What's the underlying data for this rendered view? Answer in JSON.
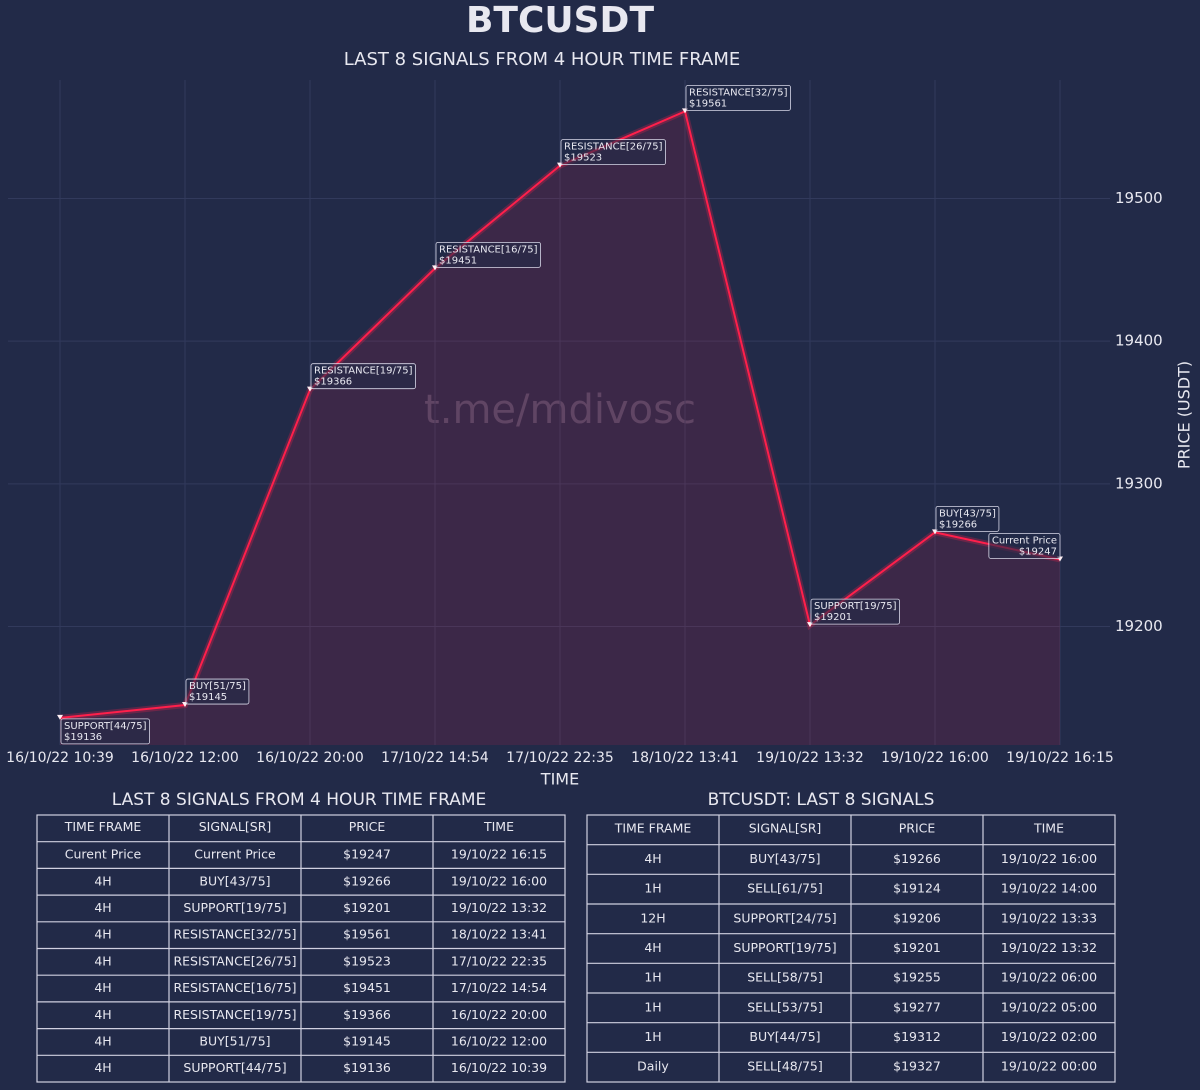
{
  "chart_data": {
    "type": "line",
    "title": "BTCUSDT",
    "subtitle": "LAST 8  SIGNALS FROM 4 HOUR TIME FRAME",
    "x_label": "TIME",
    "y_label": "PRICE (USDT)",
    "watermark": "t.me/mdivosc",
    "categories": [
      "16/10/22 10:39",
      "16/10/22 12:00",
      "16/10/22 20:00",
      "17/10/22 14:54",
      "17/10/22 22:35",
      "18/10/22 13:41",
      "19/10/22 13:32",
      "19/10/22 16:00",
      "19/10/22 16:15"
    ],
    "values": [
      19136,
      19145,
      19366,
      19451,
      19523,
      19561,
      19201,
      19266,
      19247
    ],
    "value_labels": [
      "$19136",
      "$19145",
      "$19366",
      "$19451",
      "$19523",
      "$19561",
      "$19201",
      "$19266",
      "$19247"
    ],
    "annotations": [
      "SUPPORT[44/75]",
      "BUY[51/75]",
      "RESISTANCE[19/75]",
      "RESISTANCE[16/75]",
      "RESISTANCE[26/75]",
      "RESISTANCE[32/75]",
      "SUPPORT[19/75]",
      "BUY[43/75]",
      "Current Price"
    ],
    "color": "#ff1f4b",
    "ylim": [
      19117,
      19583
    ],
    "yticks": [
      19200,
      19300,
      19400,
      19500
    ],
    "grid": true
  },
  "tables": [
    {
      "title": "LAST 8  SIGNALS FROM 4 HOUR TIME FRAME",
      "header": [
        "TIME FRAME",
        "SIGNAL[SR]",
        "PRICE",
        "TIME"
      ],
      "rows": [
        [
          "Curent Price",
          "Current Price",
          "$19247",
          "19/10/22 16:15"
        ],
        [
          "4H",
          "BUY[43/75]",
          "$19266",
          "19/10/22 16:00"
        ],
        [
          "4H",
          "SUPPORT[19/75]",
          "$19201",
          "19/10/22 13:32"
        ],
        [
          "4H",
          "RESISTANCE[32/75]",
          "$19561",
          "18/10/22 13:41"
        ],
        [
          "4H",
          "RESISTANCE[26/75]",
          "$19523",
          "17/10/22 22:35"
        ],
        [
          "4H",
          "RESISTANCE[16/75]",
          "$19451",
          "17/10/22 14:54"
        ],
        [
          "4H",
          "RESISTANCE[19/75]",
          "$19366",
          "16/10/22 20:00"
        ],
        [
          "4H",
          "BUY[51/75]",
          "$19145",
          "16/10/22 12:00"
        ],
        [
          "4H",
          "SUPPORT[44/75]",
          "$19136",
          "16/10/22 10:39"
        ]
      ]
    },
    {
      "title": "BTCUSDT: LAST 8 SIGNALS",
      "header": [
        "TIME FRAME",
        "SIGNAL[SR]",
        "PRICE",
        "TIME"
      ],
      "rows": [
        [
          "4H",
          "BUY[43/75]",
          "$19266",
          "19/10/22 16:00"
        ],
        [
          "1H",
          "SELL[61/75]",
          "$19124",
          "19/10/22 14:00"
        ],
        [
          "12H",
          "SUPPORT[24/75]",
          "$19206",
          "19/10/22 13:33"
        ],
        [
          "4H",
          "SUPPORT[19/75]",
          "$19201",
          "19/10/22 13:32"
        ],
        [
          "1H",
          "SELL[58/75]",
          "$19255",
          "19/10/22 06:00"
        ],
        [
          "1H",
          "SELL[53/75]",
          "$19277",
          "19/10/22 05:00"
        ],
        [
          "1H",
          "BUY[44/75]",
          "$19312",
          "19/10/22 02:00"
        ],
        [
          "Daily",
          "SELL[48/75]",
          "$19327",
          "19/10/22 00:00"
        ]
      ]
    }
  ]
}
